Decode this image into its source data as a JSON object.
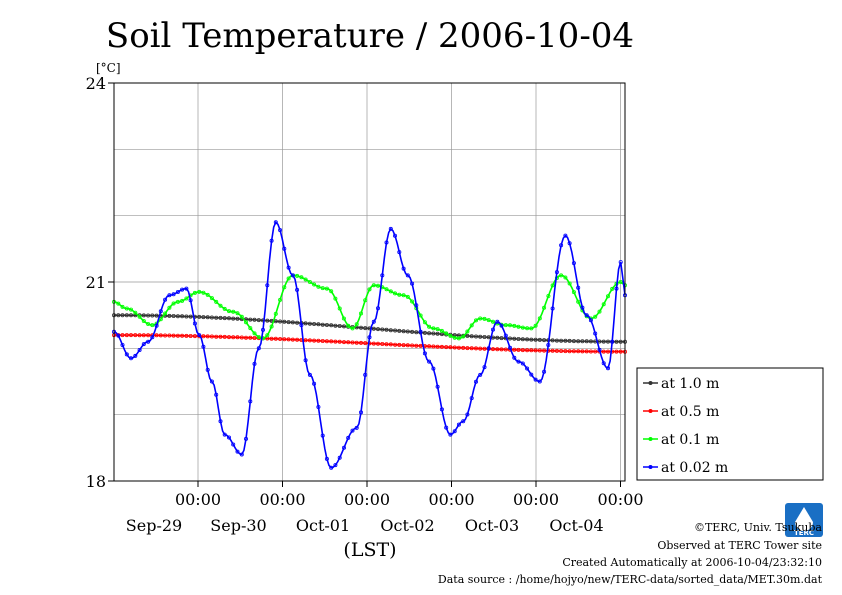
{
  "chart_data": {
    "type": "line",
    "title": "Soil Temperature / 2006-10-04",
    "ylabel": "[°C]",
    "xlabel": "(LST)",
    "ylim": [
      18,
      24
    ],
    "xlim": [
      0,
      6
    ],
    "yticks": [
      18,
      21,
      24
    ],
    "ygrid": [
      18,
      19,
      20,
      21,
      22,
      23,
      24
    ],
    "grid": true,
    "legend_position": "right",
    "time_ticks": [
      {
        "x": 1,
        "time": "00:00",
        "date": "Sep-29"
      },
      {
        "x": 2,
        "time": "00:00",
        "date": "Sep-30"
      },
      {
        "x": 3,
        "time": "00:00",
        "date": "Oct-01"
      },
      {
        "x": 4,
        "time": "00:00",
        "date": "Oct-02"
      },
      {
        "x": 5,
        "time": "00:00",
        "date": "Oct-03"
      },
      {
        "x": 6,
        "time": "00:00",
        "date": "Oct-04"
      }
    ],
    "series": [
      {
        "name": "at 1.0 m",
        "color": "#333333",
        "x": [
          0,
          6
        ],
        "y": [
          20.5,
          20.1
        ]
      },
      {
        "name": "at 0.5 m",
        "color": "#ff0000",
        "x": [
          0,
          6
        ],
        "y": [
          20.2,
          19.95
        ]
      },
      {
        "name": "at 0.1 m",
        "color": "#00ff00",
        "x": [
          0,
          0.15,
          0.45,
          0.75,
          1.0,
          1.4,
          1.75,
          2.1,
          2.5,
          2.8,
          3.05,
          3.4,
          3.75,
          4.05,
          4.3,
          4.6,
          4.9,
          5.25,
          5.6,
          5.95,
          6.0
        ],
        "y": [
          20.7,
          20.6,
          20.35,
          20.7,
          20.85,
          20.55,
          20.15,
          21.1,
          20.9,
          20.3,
          20.95,
          20.8,
          20.3,
          20.15,
          20.45,
          20.35,
          20.3,
          21.1,
          20.45,
          21.0,
          20.95
        ]
      },
      {
        "name": "at 0.02 m",
        "color": "#0000ff",
        "x": [
          0,
          0.2,
          0.4,
          0.65,
          0.85,
          1.0,
          1.15,
          1.3,
          1.5,
          1.7,
          1.9,
          2.1,
          2.3,
          2.55,
          2.85,
          3.05,
          3.25,
          3.45,
          3.7,
          3.95,
          4.1,
          4.3,
          4.5,
          4.75,
          5.0,
          5.3,
          5.55,
          5.8,
          5.95,
          6.0
        ],
        "y": [
          20.25,
          19.85,
          20.1,
          20.8,
          20.9,
          20.2,
          19.5,
          18.7,
          18.4,
          20.0,
          21.9,
          21.1,
          19.6,
          18.2,
          18.8,
          20.4,
          21.8,
          21.1,
          19.8,
          18.7,
          18.9,
          19.6,
          20.4,
          19.8,
          19.5,
          21.7,
          20.5,
          19.7,
          21.3,
          20.8
        ]
      }
    ]
  },
  "credits": {
    "line1": "©TERC, Univ. Tsukuba",
    "line2": "Observed at TERC Tower site",
    "line3": "Created Automatically at 2006-10-04/23:32:10",
    "line4": "Data source : /home/hojyo/new/TERC-data/sorted_data/MET.30m.dat"
  },
  "logo": {
    "text": "TERC",
    "color": "#1a6fc4"
  }
}
